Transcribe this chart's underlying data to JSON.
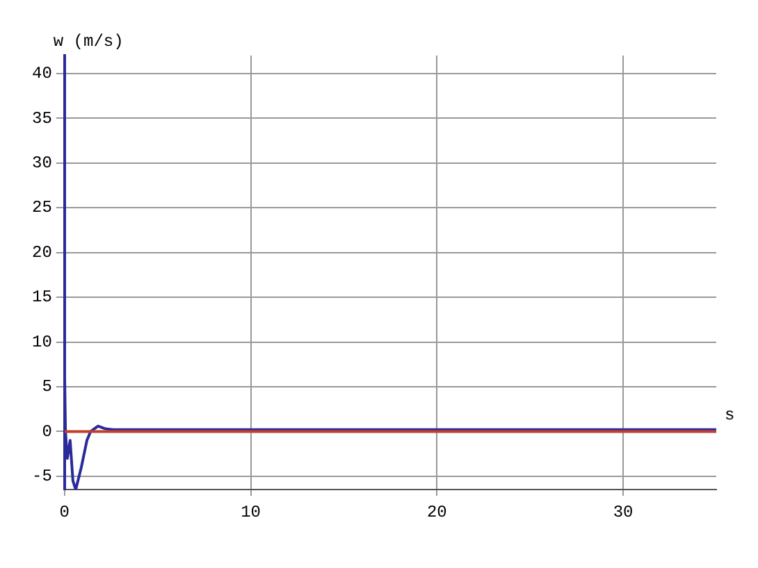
{
  "chart_data": {
    "type": "line",
    "xlabel": "s",
    "ylabel": "w (m/s)",
    "series": [
      {
        "color": "#c04030",
        "x": [
          0,
          35
        ],
        "values": [
          0,
          0
        ]
      },
      {
        "color": "#2a2a9c",
        "x": [
          0,
          0.05,
          0.15,
          0.3,
          0.45,
          0.6,
          0.9,
          1.2,
          1.4,
          1.8,
          2.2,
          2.6,
          35
        ],
        "values": [
          7,
          0,
          -3,
          -1,
          -5.5,
          -6.5,
          -4,
          -1,
          0,
          0.6,
          0.3,
          0.2,
          0.2
        ]
      }
    ],
    "xlim": [
      0,
      35
    ],
    "xticks": [
      0,
      10,
      20,
      30
    ],
    "ylim": [
      -6.5,
      42
    ],
    "yticks": [
      -5,
      0,
      5,
      10,
      15,
      20,
      25,
      30,
      35,
      40
    ],
    "grid": true,
    "legend": false,
    "marker": "none",
    "line_style": "solid"
  }
}
